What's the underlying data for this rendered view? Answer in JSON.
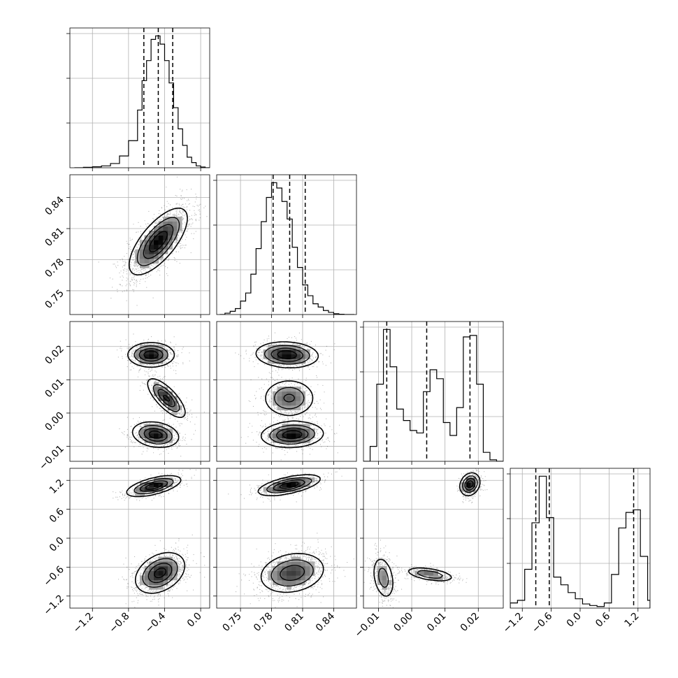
{
  "chart_data": {
    "type": "corner",
    "parameters": 4,
    "colors": {
      "ink": "#000000",
      "grid": "#b0b0b0",
      "scatter": "#000000"
    },
    "grid": true,
    "params": [
      {
        "index": 0,
        "range": [
          -1.45,
          0.1
        ],
        "ticks": [
          -1.2,
          -0.8,
          -0.4,
          0.0
        ],
        "tick_labels": [
          "−1.2",
          "−0.8",
          "−0.4",
          "0.0"
        ],
        "quantiles": [
          -0.63,
          -0.47,
          -0.31
        ]
      },
      {
        "index": 1,
        "range": [
          0.727,
          0.862
        ],
        "ticks": [
          0.75,
          0.78,
          0.81,
          0.84
        ],
        "tick_labels": [
          "0.75",
          "0.78",
          "0.81",
          "0.84"
        ],
        "quantiles": [
          0.7815,
          0.7975,
          0.8125
        ]
      },
      {
        "index": 2,
        "range": [
          -0.0145,
          0.0275
        ],
        "ticks": [
          -0.01,
          0.0,
          0.01,
          0.02
        ],
        "tick_labels": [
          "−0.01",
          "0.00",
          "0.01",
          "0.02"
        ],
        "quantiles": [
          -0.0075,
          0.0045,
          0.0175
        ]
      },
      {
        "index": 3,
        "range": [
          -1.45,
          1.45
        ],
        "ticks": [
          -1.2,
          -0.6,
          0.0,
          0.6,
          1.2
        ],
        "tick_labels": [
          "−1.2",
          "−0.6",
          "0.0",
          "0.6",
          "1.2"
        ],
        "quantiles": [
          -0.92,
          -0.64,
          1.11
        ]
      }
    ],
    "histograms": [
      {
        "param": 0,
        "bins": [
          -1.4,
          -1.3,
          -1.2,
          -1.1,
          -1.0,
          -0.9,
          -0.8,
          -0.7,
          -0.65,
          -0.6,
          -0.55,
          -0.5,
          -0.45,
          -0.4,
          -0.35,
          -0.3,
          -0.25,
          -0.2,
          -0.15,
          -0.1,
          -0.05,
          0.0,
          0.05,
          0.1
        ],
        "counts": [
          0,
          2,
          4,
          8,
          18,
          50,
          115,
          245,
          370,
          455,
          545,
          560,
          525,
          455,
          360,
          255,
          165,
          95,
          45,
          22,
          8,
          3,
          0
        ]
      },
      {
        "param": 1,
        "bins": [
          0.73,
          0.735,
          0.74,
          0.745,
          0.75,
          0.755,
          0.76,
          0.765,
          0.77,
          0.775,
          0.78,
          0.785,
          0.79,
          0.795,
          0.8,
          0.805,
          0.81,
          0.815,
          0.82,
          0.825,
          0.83,
          0.835,
          0.84,
          0.845,
          0.85,
          0.855,
          0.86
        ],
        "counts": [
          0,
          5,
          12,
          22,
          50,
          80,
          150,
          245,
          345,
          435,
          490,
          470,
          420,
          355,
          250,
          175,
          110,
          70,
          40,
          28,
          15,
          8,
          3,
          1,
          0,
          0
        ]
      },
      {
        "param": 2,
        "bins": [
          -0.0145,
          -0.0125,
          -0.0105,
          -0.0085,
          -0.0065,
          -0.0045,
          -0.0025,
          -0.0005,
          0.0015,
          0.0035,
          0.0055,
          0.0075,
          0.0095,
          0.0115,
          0.0135,
          0.0155,
          0.0175,
          0.0195,
          0.0215,
          0.0235,
          0.0255,
          0.0275
        ],
        "counts": [
          0,
          30,
          155,
          265,
          190,
          105,
          82,
          62,
          57,
          140,
          184,
          166,
          78,
          52,
          108,
          250,
          253,
          155,
          18,
          3,
          0
        ]
      },
      {
        "param": 3,
        "bins": [
          -1.45,
          -1.3,
          -1.15,
          -1.0,
          -0.85,
          -0.7,
          -0.55,
          -0.4,
          -0.25,
          -0.1,
          0.05,
          0.2,
          0.35,
          0.5,
          0.65,
          0.8,
          0.95,
          1.1,
          1.25,
          1.4,
          1.45
        ],
        "counts": [
          10,
          15,
          75,
          165,
          255,
          175,
          60,
          45,
          30,
          18,
          8,
          5,
          3,
          10,
          65,
          155,
          185,
          190,
          100,
          15
        ]
      }
    ],
    "pairs": [
      {
        "x": 0,
        "y": 1,
        "blobs": [
          {
            "mx": -0.47,
            "my": 0.7975,
            "sx": 0.15,
            "sy": 0.015,
            "rho": 0.7,
            "w": 1
          }
        ]
      },
      {
        "x": 0,
        "y": 2,
        "blobs": [
          {
            "mx": -0.55,
            "my": 0.0175,
            "sx": 0.12,
            "sy": 0.0017,
            "rho": 0.0,
            "w": 0.36
          },
          {
            "mx": -0.38,
            "my": 0.0045,
            "sx": 0.1,
            "sy": 0.0028,
            "rho": -0.75,
            "w": 0.28
          },
          {
            "mx": -0.5,
            "my": -0.0065,
            "sx": 0.12,
            "sy": 0.0018,
            "rho": -0.2,
            "w": 0.36
          }
        ]
      },
      {
        "x": 1,
        "y": 2,
        "blobs": [
          {
            "mx": 0.795,
            "my": 0.0175,
            "sx": 0.014,
            "sy": 0.0018,
            "rho": -0.1,
            "w": 0.36
          },
          {
            "mx": 0.797,
            "my": 0.0045,
            "sx": 0.012,
            "sy": 0.0027,
            "rho": 0.0,
            "w": 0.28
          },
          {
            "mx": 0.8,
            "my": -0.0065,
            "sx": 0.014,
            "sy": 0.0018,
            "rho": 0.1,
            "w": 0.36
          }
        ]
      },
      {
        "x": 0,
        "y": 3,
        "blobs": [
          {
            "mx": -0.52,
            "my": 1.08,
            "sx": 0.14,
            "sy": 0.1,
            "rho": 0.6,
            "w": 0.34
          },
          {
            "mx": -0.45,
            "my": -0.72,
            "sx": 0.13,
            "sy": 0.2,
            "rho": 0.35,
            "w": 0.66
          }
        ]
      },
      {
        "x": 1,
        "y": 3,
        "blobs": [
          {
            "mx": 0.797,
            "my": 1.1,
            "sx": 0.014,
            "sy": 0.1,
            "rho": 0.6,
            "w": 0.34
          },
          {
            "mx": 0.8,
            "my": -0.72,
            "sx": 0.015,
            "sy": 0.2,
            "rho": 0.2,
            "w": 0.66
          }
        ]
      },
      {
        "x": 2,
        "y": 3,
        "blobs": [
          {
            "mx": 0.0175,
            "my": 1.12,
            "sx": 0.0014,
            "sy": 0.11,
            "rho": 0.2,
            "w": 0.36
          },
          {
            "mx": -0.0085,
            "my": -0.82,
            "sx": 0.0016,
            "sy": 0.22,
            "rho": -0.3,
            "w": 0.36
          },
          {
            "mx": 0.0055,
            "my": -0.75,
            "sx": 0.0035,
            "sy": 0.07,
            "rho": -0.5,
            "w": 0.28
          }
        ]
      }
    ]
  }
}
